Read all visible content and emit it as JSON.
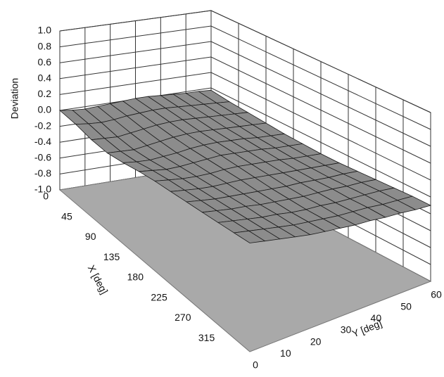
{
  "chart_data": {
    "type": "surface",
    "zlabel": "Deviation",
    "xlabel": "X [deg]",
    "ylabel": "Y [deg]",
    "x": [
      0,
      30,
      60,
      90,
      120,
      150,
      180,
      210,
      240,
      270,
      300,
      330,
      360
    ],
    "y": [
      0,
      5,
      10,
      15,
      20,
      25,
      30,
      35,
      40,
      45,
      50,
      55,
      60
    ],
    "z": [
      [
        0,
        -0.02,
        -0.03,
        -0.02,
        -0.01,
        0,
        0.01,
        0.01,
        0,
        -0.01,
        -0.02,
        -0.02,
        -0.03
      ],
      [
        -0.03,
        -0.05,
        -0.06,
        -0.05,
        -0.03,
        -0.02,
        -0.01,
        -0.01,
        -0.02,
        -0.03,
        -0.04,
        -0.05,
        -0.06
      ],
      [
        -0.08,
        -0.09,
        -0.1,
        -0.08,
        -0.06,
        -0.04,
        -0.03,
        -0.03,
        -0.04,
        -0.05,
        -0.06,
        -0.07,
        -0.08
      ],
      [
        -0.1,
        -0.11,
        -0.12,
        -0.1,
        -0.08,
        -0.06,
        -0.05,
        -0.05,
        -0.06,
        -0.07,
        -0.08,
        -0.09,
        -0.1
      ],
      [
        -0.08,
        -0.1,
        -0.11,
        -0.1,
        -0.09,
        -0.07,
        -0.06,
        -0.06,
        -0.07,
        -0.08,
        -0.1,
        -0.11,
        -0.12
      ],
      [
        -0.05,
        -0.07,
        -0.09,
        -0.09,
        -0.08,
        -0.07,
        -0.06,
        -0.07,
        -0.08,
        -0.09,
        -0.11,
        -0.12,
        -0.13
      ],
      [
        -0.03,
        -0.05,
        -0.07,
        -0.08,
        -0.08,
        -0.07,
        -0.07,
        -0.08,
        -0.09,
        -0.1,
        -0.12,
        -0.13,
        -0.14
      ],
      [
        -0.02,
        -0.04,
        -0.06,
        -0.07,
        -0.07,
        -0.07,
        -0.08,
        -0.09,
        -0.1,
        -0.11,
        -0.12,
        -0.13,
        -0.14
      ],
      [
        -0.01,
        -0.03,
        -0.05,
        -0.06,
        -0.07,
        -0.08,
        -0.09,
        -0.1,
        -0.1,
        -0.11,
        -0.12,
        -0.12,
        -0.13
      ],
      [
        0,
        -0.02,
        -0.04,
        -0.05,
        -0.07,
        -0.08,
        -0.09,
        -0.1,
        -0.1,
        -0.1,
        -0.11,
        -0.11,
        -0.12
      ],
      [
        0.01,
        -0.01,
        -0.03,
        -0.05,
        -0.06,
        -0.08,
        -0.09,
        -0.09,
        -0.1,
        -0.1,
        -0.1,
        -0.1,
        -0.11
      ],
      [
        0.02,
        0,
        -0.02,
        -0.04,
        -0.06,
        -0.07,
        -0.08,
        -0.09,
        -0.09,
        -0.09,
        -0.1,
        -0.1,
        -0.1
      ],
      [
        0.03,
        0.01,
        -0.01,
        -0.03,
        -0.05,
        -0.06,
        -0.07,
        -0.08,
        -0.08,
        -0.09,
        -0.09,
        -0.1,
        -0.1
      ]
    ],
    "xlim": [
      0,
      360
    ],
    "ylim": [
      0,
      60
    ],
    "zlim": [
      -1,
      1
    ],
    "xticks": [
      0,
      45,
      90,
      135,
      180,
      225,
      270,
      315
    ],
    "yticks": [
      0,
      10,
      20,
      30,
      40,
      50,
      60
    ],
    "zticks": [
      {
        "value": -1,
        "label": "-1.0"
      },
      -0.8,
      -0.6,
      -0.4,
      -0.2,
      {
        "value": 0,
        "label": "0.0"
      },
      0.2,
      0.4,
      0.6,
      0.8,
      {
        "value": 1,
        "label": "1.0"
      }
    ],
    "surface_color": "#8c8c8c",
    "floor_color": "#a9a9a9",
    "grid": true
  }
}
